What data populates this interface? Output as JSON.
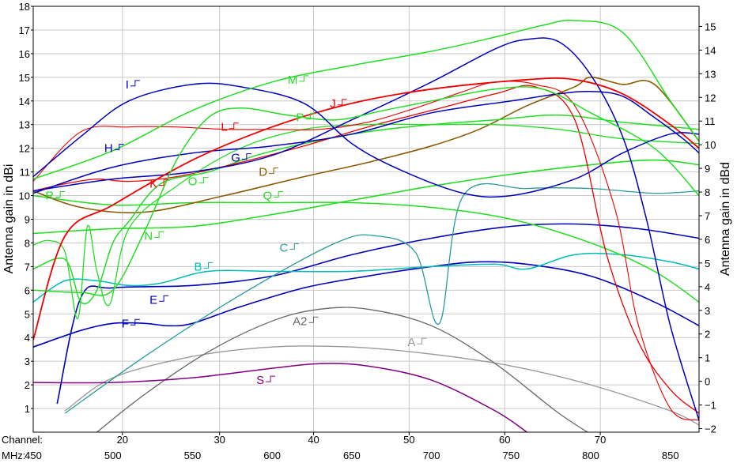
{
  "chart_data": {
    "type": "line",
    "ylabel_left": "Antenna gain   in dBi",
    "ylabel_right": "Antenna gain   in dBd",
    "ylim_left": [
      0,
      18
    ],
    "ylim_right": [
      -2.15,
      15.85
    ],
    "xlim_mhz": [
      450,
      868
    ],
    "y_ticks_left": [
      "1",
      "2",
      "3",
      "4",
      "5",
      "6",
      "7",
      "8",
      "9",
      "10",
      "11",
      "12",
      "13",
      "14",
      "15",
      "16",
      "17",
      "18"
    ],
    "y_ticks_right": [
      "−2",
      "−1",
      "0",
      "1",
      "2",
      "3",
      "4",
      "5",
      "6",
      "7",
      "8",
      "9",
      "10",
      "11",
      "12",
      "13",
      "14",
      "15"
    ],
    "channel_axis": {
      "label": "Channel:",
      "ticks": [
        {
          "label": "20",
          "mhz": 506
        },
        {
          "label": "30",
          "mhz": 567
        },
        {
          "label": "40",
          "mhz": 626
        },
        {
          "label": "50",
          "mhz": 686
        },
        {
          "label": "60",
          "mhz": 746
        },
        {
          "label": "70",
          "mhz": 806
        }
      ]
    },
    "mhz_axis": {
      "label": "MHz:",
      "ticks": [
        "450",
        "500",
        "550",
        "600",
        "650",
        "700",
        "750",
        "800",
        "850"
      ]
    },
    "grid": true,
    "series": [
      {
        "name": "A",
        "color": "#999999",
        "width": 1.3,
        "label_at": [
          690,
          3.8
        ],
        "x": [
          470,
          500,
          550,
          600,
          650,
          700,
          750,
          800,
          850,
          868
        ],
        "y": [
          0.9,
          2.3,
          3.2,
          3.6,
          3.6,
          3.3,
          2.8,
          2.0,
          0.9,
          0.3
        ]
      },
      {
        "name": "A2",
        "color": "#666666",
        "width": 1.3,
        "label_at": [
          622,
          4.7
        ],
        "x": [
          490,
          520,
          560,
          600,
          630,
          660,
          700,
          740,
          780,
          810
        ],
        "y": [
          0.0,
          1.6,
          3.4,
          4.7,
          5.2,
          5.2,
          4.5,
          2.9,
          0.8,
          -0.5
        ]
      },
      {
        "name": "S",
        "color": "#800080",
        "width": 1.5,
        "label_at": [
          595,
          2.2
        ],
        "x": [
          450,
          500,
          550,
          600,
          630,
          660,
          700,
          740,
          760
        ],
        "y": [
          2.1,
          2.1,
          2.3,
          2.7,
          2.9,
          2.8,
          2.2,
          0.9,
          0.0
        ]
      },
      {
        "name": "F",
        "color": "#0000bb",
        "width": 1.6,
        "label_at": [
          510,
          4.6
        ],
        "x": [
          450,
          480,
          500,
          520,
          535,
          550,
          580,
          620,
          660,
          700,
          730,
          760,
          800,
          840,
          868
        ],
        "y": [
          3.6,
          4.3,
          4.6,
          4.6,
          4.5,
          4.6,
          5.3,
          6.1,
          6.6,
          7.0,
          7.2,
          7.1,
          6.6,
          5.5,
          4.5
        ]
      },
      {
        "name": "E",
        "color": "#0000bb",
        "width": 1.6,
        "label_at": [
          528,
          5.6
        ],
        "x": [
          465,
          480,
          500,
          550,
          600,
          650,
          700,
          750,
          790,
          830,
          868
        ],
        "y": [
          1.2,
          5.7,
          6.1,
          6.2,
          6.6,
          7.5,
          8.2,
          8.7,
          8.8,
          8.6,
          8.2
        ]
      },
      {
        "name": "B",
        "color": "#00bbbb",
        "width": 1.5,
        "label_at": [
          556,
          7.0
        ],
        "x": [
          450,
          470,
          490,
          510,
          530,
          560,
          600,
          650,
          700,
          740,
          760,
          790,
          820,
          850,
          868
        ],
        "y": [
          5.5,
          6.4,
          6.4,
          6.2,
          6.3,
          6.8,
          6.8,
          6.8,
          7.0,
          7.1,
          6.9,
          7.5,
          7.5,
          7.2,
          6.9
        ]
      },
      {
        "name": "C",
        "color": "#2a9a9a",
        "width": 1.3,
        "label_at": [
          610,
          7.8
        ],
        "x": [
          470,
          520,
          580,
          640,
          665,
          690,
          705,
          720,
          760,
          800,
          840,
          868
        ],
        "y": [
          0.8,
          3.2,
          5.8,
          8.0,
          8.3,
          7.6,
          4.6,
          10.0,
          10.3,
          10.3,
          10.1,
          10.2
        ]
      },
      {
        "name": "N",
        "color": "#22dd22",
        "width": 1.6,
        "label_at": [
          525,
          8.3
        ],
        "x": [
          450,
          500,
          550,
          600,
          650,
          700,
          750,
          800,
          840,
          868
        ],
        "y": [
          8.4,
          8.6,
          8.7,
          9.2,
          9.8,
          10.4,
          10.9,
          11.3,
          11.5,
          11.3
        ]
      },
      {
        "name": "Q",
        "color": "#22dd22",
        "width": 1.5,
        "label_at": [
          600,
          10.0
        ],
        "x": [
          450,
          500,
          550,
          600,
          650,
          700,
          750,
          800,
          840,
          868
        ],
        "y": [
          10.0,
          9.6,
          9.7,
          9.7,
          9.7,
          9.5,
          9.0,
          8.0,
          6.8,
          5.5
        ]
      },
      {
        "name": "D",
        "color": "#8b5a00",
        "width": 1.6,
        "label_at": [
          597,
          11.0
        ],
        "x": [
          450,
          480,
          520,
          570,
          620,
          660,
          700,
          730,
          760,
          790,
          800,
          820,
          840,
          868
        ],
        "y": [
          10.2,
          9.5,
          9.3,
          10.0,
          10.8,
          11.4,
          12.1,
          12.8,
          13.8,
          14.6,
          15.0,
          14.7,
          14.7,
          12.3
        ]
      },
      {
        "name": "O",
        "color": "#22dd22",
        "width": 1.5,
        "label_at": [
          553,
          10.6
        ],
        "x": [
          450,
          470,
          480,
          490,
          500,
          510,
          530,
          560,
          590,
          620,
          660,
          700,
          740,
          780,
          820,
          868
        ],
        "y": [
          6.9,
          7.3,
          5.5,
          6.0,
          8.0,
          8.9,
          10.5,
          11.0,
          11.7,
          12.2,
          12.7,
          13.0,
          13.2,
          13.4,
          13.1,
          12.8
        ]
      },
      {
        "name": "K",
        "color": "#ee0000",
        "width": 1.3,
        "label_at": [
          528,
          10.5
        ],
        "x": [
          450,
          470,
          490,
          510,
          540,
          580,
          620,
          660,
          700,
          740,
          765,
          790,
          810,
          830,
          850,
          868
        ],
        "y": [
          10.2,
          10.5,
          10.7,
          10.6,
          10.8,
          11.4,
          12.1,
          12.9,
          13.6,
          14.3,
          14.6,
          13.2,
          7.5,
          3.8,
          1.8,
          0.8
        ]
      },
      {
        "name": "R",
        "color": "#22dd22",
        "width": 1.3,
        "label_at": [
          463,
          10.0
        ],
        "x": [
          450,
          460,
          470,
          478,
          484,
          490,
          498,
          510,
          540,
          580,
          620,
          660,
          700,
          740,
          780,
          820,
          868
        ],
        "y": [
          7.9,
          8.1,
          7.6,
          4.8,
          8.7,
          6.8,
          5.4,
          8.6,
          10.4,
          12.0,
          12.8,
          13.0,
          13.0,
          13.0,
          12.8,
          12.4,
          12.2
        ]
      },
      {
        "name": "L",
        "color": "#ee0000",
        "width": 1.1,
        "label_at": [
          572,
          12.9
        ],
        "x": [
          450,
          480,
          510,
          540,
          570,
          600,
          630,
          660,
          690,
          720,
          740,
          765,
          790,
          815,
          830,
          850,
          868
        ],
        "y": [
          10.6,
          12.7,
          12.9,
          12.9,
          12.8,
          12.8,
          12.8,
          13.1,
          13.7,
          14.4,
          14.8,
          14.7,
          13.8,
          9.5,
          4.5,
          1.0,
          0.5
        ]
      },
      {
        "name": "G",
        "color": "#0000bb",
        "width": 1.5,
        "label_at": [
          580,
          11.6
        ],
        "x": [
          450,
          500,
          550,
          600,
          650,
          700,
          740,
          760,
          780,
          800,
          820,
          835,
          850,
          868
        ],
        "y": [
          10.2,
          10.7,
          11.0,
          11.7,
          13.2,
          14.8,
          16.2,
          16.6,
          16.5,
          15.1,
          12.5,
          9.0,
          4.5,
          0.5
        ]
      },
      {
        "name": "H",
        "color": "#0000bb",
        "width": 1.5,
        "label_at": [
          500,
          12.0
        ],
        "x": [
          450,
          500,
          550,
          600,
          650,
          700,
          750,
          780,
          800,
          820,
          840,
          858,
          868
        ],
        "y": [
          10.1,
          11.2,
          11.8,
          12.1,
          12.6,
          13.5,
          14.0,
          14.3,
          14.4,
          14.2,
          13.3,
          12.4,
          11.8
        ]
      },
      {
        "name": "J",
        "color": "#ee0000",
        "width": 1.8,
        "label_at": [
          640,
          13.9
        ],
        "x": [
          450,
          470,
          500,
          550,
          600,
          650,
          700,
          760,
          790,
          820,
          850,
          868
        ],
        "y": [
          3.9,
          8.3,
          9.6,
          11.5,
          12.9,
          13.9,
          14.5,
          14.9,
          14.9,
          14.3,
          13.0,
          12.0
        ]
      },
      {
        "name": "P",
        "color": "#22dd22",
        "width": 1.5,
        "label_at": [
          620,
          13.3
        ],
        "x": [
          450,
          480,
          500,
          520,
          540,
          560,
          580,
          610,
          640,
          670,
          700,
          740,
          770,
          800,
          840,
          868
        ],
        "y": [
          6.0,
          5.9,
          6.0,
          8.5,
          11.5,
          13.3,
          13.7,
          13.4,
          13.2,
          13.6,
          14.0,
          14.5,
          14.5,
          13.5,
          12.0,
          10.0
        ]
      },
      {
        "name": "I",
        "color": "#0000bb",
        "width": 1.5,
        "label_at": [
          510,
          14.7
        ],
        "x": [
          450,
          480,
          510,
          550,
          580,
          620,
          650,
          680,
          720,
          750,
          790,
          820,
          850,
          868
        ],
        "y": [
          10.8,
          12.5,
          14.0,
          14.7,
          14.6,
          13.9,
          12.2,
          11.1,
          10.1,
          10.0,
          10.7,
          11.8,
          12.6,
          12.6
        ]
      },
      {
        "name": "M",
        "color": "#22dd22",
        "width": 1.5,
        "label_at": [
          616,
          14.9
        ],
        "x": [
          450,
          500,
          550,
          600,
          650,
          700,
          740,
          770,
          790,
          820,
          850,
          868
        ],
        "y": [
          10.7,
          11.9,
          13.6,
          14.8,
          15.5,
          16.1,
          16.7,
          17.2,
          17.4,
          16.9,
          14.0,
          12.3
        ]
      }
    ]
  }
}
